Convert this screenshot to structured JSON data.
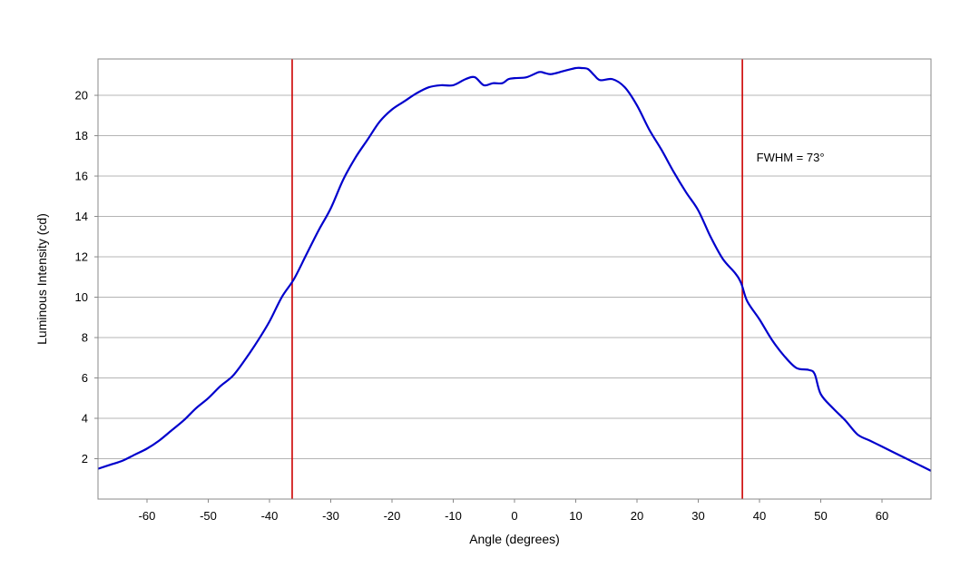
{
  "chart_data": {
    "type": "line",
    "title": "",
    "xlabel": "Angle (degrees)",
    "ylabel": "Luminous Intensity (cd)",
    "xlim": [
      -68,
      68
    ],
    "ylim": [
      0,
      21.8
    ],
    "x_ticks": [
      -60,
      -50,
      -40,
      -30,
      -20,
      -10,
      0,
      10,
      20,
      30,
      40,
      50,
      60
    ],
    "y_ticks": [
      2,
      4,
      6,
      8,
      10,
      12,
      14,
      16,
      18,
      20
    ],
    "grid": "horizontal",
    "legend": "none",
    "series": [
      {
        "color": "#0000cc",
        "x": [
          -68,
          -66,
          -64,
          -62,
          -60,
          -58,
          -56,
          -54,
          -52,
          -50,
          -48,
          -46,
          -44,
          -42,
          -40,
          -38,
          -36,
          -34,
          -32,
          -30,
          -28,
          -26,
          -24,
          -22,
          -20,
          -18,
          -16,
          -14,
          -12,
          -10,
          -8,
          -6.5,
          -5,
          -3.5,
          -2,
          -1,
          0,
          2,
          4,
          5,
          6,
          8,
          10,
          11,
          12,
          13,
          14,
          16,
          18,
          20,
          22,
          24,
          26,
          28,
          30,
          32,
          34,
          36,
          37,
          38,
          40,
          42,
          44,
          46,
          48,
          49,
          50,
          52,
          54,
          56,
          58,
          60,
          62,
          64,
          66,
          68
        ],
        "y": [
          1.5,
          1.7,
          1.9,
          2.2,
          2.5,
          2.9,
          3.4,
          3.9,
          4.5,
          5.0,
          5.6,
          6.1,
          6.9,
          7.8,
          8.8,
          10.0,
          10.9,
          12.1,
          13.3,
          14.4,
          15.8,
          16.9,
          17.8,
          18.7,
          19.3,
          19.7,
          20.1,
          20.4,
          20.5,
          20.5,
          20.8,
          20.9,
          20.5,
          20.6,
          20.6,
          20.8,
          20.85,
          20.9,
          21.15,
          21.1,
          21.05,
          21.2,
          21.35,
          21.35,
          21.3,
          21.0,
          20.75,
          20.8,
          20.4,
          19.5,
          18.3,
          17.3,
          16.2,
          15.2,
          14.3,
          13.0,
          11.9,
          11.2,
          10.7,
          9.8,
          8.9,
          7.9,
          7.1,
          6.5,
          6.4,
          6.2,
          5.2,
          4.5,
          3.9,
          3.2,
          2.9,
          2.6,
          2.3,
          2.0,
          1.7,
          1.4
        ]
      }
    ],
    "vertical_lines": [
      {
        "x": -36.3,
        "color": "#cc0000"
      },
      {
        "x": 37.2,
        "color": "#cc0000"
      }
    ],
    "annotation": {
      "text": "FWHM = 73°",
      "x": 39.5,
      "y": 16.9
    }
  }
}
